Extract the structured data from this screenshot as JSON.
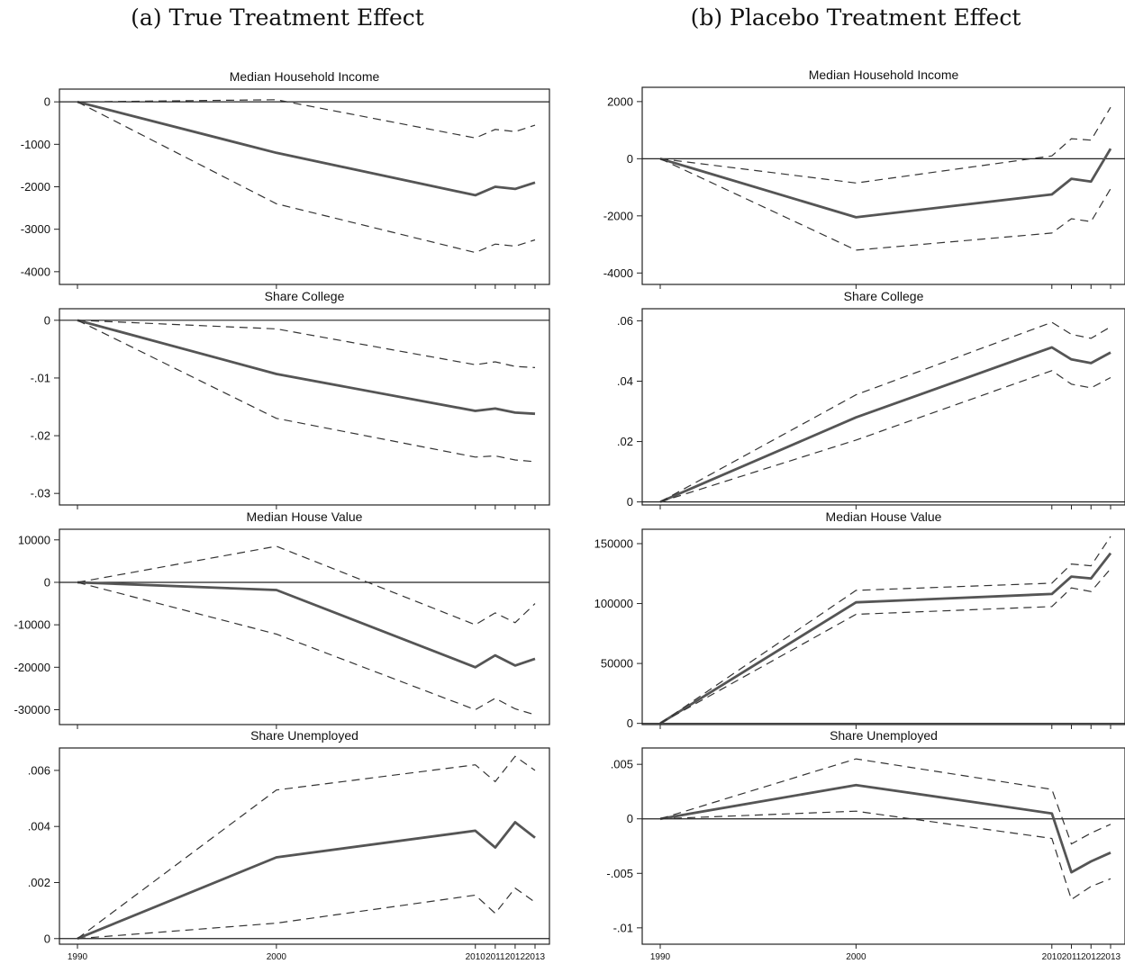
{
  "figure": {
    "columns": [
      {
        "title": "(a) True Treatment Effect"
      },
      {
        "title": "(b) Placebo Treatment Effect"
      }
    ]
  },
  "chart_data": [
    {
      "type": "line",
      "title": "Median Household Income",
      "x": [
        1990,
        2000,
        2010,
        2011,
        2012,
        2013
      ],
      "xticks": [
        "1990",
        "2000",
        "2010",
        "2011",
        "2012",
        "2013"
      ],
      "yticks": [
        0,
        -1000,
        -2000,
        -3000,
        -4000
      ],
      "ytick_labels": [
        "0",
        "-1000",
        "-2000",
        "-3000",
        "-4000"
      ],
      "ylim": [
        -4300,
        300
      ],
      "series": [
        {
          "values": [
            0,
            -1200,
            -2200,
            -2000,
            -2050,
            -1900
          ]
        },
        {
          "values": [
            0,
            50,
            -850,
            -650,
            -700,
            -550
          ]
        },
        {
          "values": [
            0,
            -2400,
            -3550,
            -3350,
            -3400,
            -3250
          ]
        }
      ]
    },
    {
      "type": "line",
      "title": "Median Household Income",
      "x": [
        1990,
        2000,
        2010,
        2011,
        2012,
        2013
      ],
      "xticks": [
        "1990",
        "2000",
        "2010",
        "2011",
        "2012",
        "2013"
      ],
      "yticks": [
        2000,
        0,
        -2000,
        -4000
      ],
      "ytick_labels": [
        "2000",
        "0",
        "-2000",
        "-4000"
      ],
      "ylim": [
        -4400,
        2500
      ],
      "series": [
        {
          "values": [
            0,
            -2050,
            -1250,
            -700,
            -800,
            350
          ]
        },
        {
          "values": [
            0,
            -850,
            100,
            700,
            650,
            1800
          ]
        },
        {
          "values": [
            0,
            -3200,
            -2600,
            -2100,
            -2200,
            -1050
          ]
        }
      ]
    },
    {
      "type": "line",
      "title": "Share College",
      "x": [
        1990,
        2000,
        2010,
        2011,
        2012,
        2013
      ],
      "xticks": [
        "1990",
        "2000",
        "2010",
        "2011",
        "2012",
        "2013"
      ],
      "yticks": [
        0,
        -0.01,
        -0.02,
        -0.03
      ],
      "ytick_labels": [
        "0",
        "-.01",
        "-.02",
        "-.03"
      ],
      "ylim": [
        -0.032,
        0.002
      ],
      "series": [
        {
          "values": [
            0,
            -0.0093,
            -0.0157,
            -0.0153,
            -0.016,
            -0.0162
          ]
        },
        {
          "values": [
            0,
            -0.0015,
            -0.0077,
            -0.0072,
            -0.008,
            -0.0082
          ]
        },
        {
          "values": [
            0,
            -0.017,
            -0.0237,
            -0.0235,
            -0.0242,
            -0.0245
          ]
        }
      ]
    },
    {
      "type": "line",
      "title": "Share College",
      "x": [
        1990,
        2000,
        2010,
        2011,
        2012,
        2013
      ],
      "xticks": [
        "1990",
        "2000",
        "2010",
        "2011",
        "2012",
        "2013"
      ],
      "yticks": [
        0.06,
        0.04,
        0.02,
        0
      ],
      "ytick_labels": [
        ".06",
        ".04",
        ".02",
        "0"
      ],
      "ylim": [
        -0.001,
        0.064
      ],
      "series": [
        {
          "values": [
            0,
            0.028,
            0.0512,
            0.0472,
            0.046,
            0.0495
          ]
        },
        {
          "values": [
            0,
            0.0355,
            0.0595,
            0.0555,
            0.0542,
            0.058
          ]
        },
        {
          "values": [
            0,
            0.0205,
            0.0435,
            0.039,
            0.0378,
            0.0412
          ]
        }
      ]
    },
    {
      "type": "line",
      "title": "Median House Value",
      "x": [
        1990,
        2000,
        2010,
        2011,
        2012,
        2013
      ],
      "xticks": [
        "1990",
        "2000",
        "2010",
        "2011",
        "2012",
        "2013"
      ],
      "yticks": [
        10000,
        0,
        -10000,
        -20000,
        -30000
      ],
      "ytick_labels": [
        "10000",
        "0",
        "-10000",
        "-20000",
        "-30000"
      ],
      "ylim": [
        -33500,
        12500
      ],
      "series": [
        {
          "values": [
            0,
            -1800,
            -20000,
            -17200,
            -19600,
            -18000
          ]
        },
        {
          "values": [
            0,
            8500,
            -10000,
            -7200,
            -9500,
            -5000
          ]
        },
        {
          "values": [
            0,
            -12200,
            -30000,
            -27300,
            -29800,
            -31200
          ]
        }
      ]
    },
    {
      "type": "line",
      "title": "Median House Value",
      "x": [
        1990,
        2000,
        2010,
        2011,
        2012,
        2013
      ],
      "xticks": [
        "1990",
        "2000",
        "2010",
        "2011",
        "2012",
        "2013"
      ],
      "yticks": [
        150000,
        100000,
        50000,
        0
      ],
      "ytick_labels": [
        "150000",
        "100000",
        "50000",
        "0"
      ],
      "ylim": [
        -1000,
        162000
      ],
      "series": [
        {
          "values": [
            0,
            101000,
            108000,
            122500,
            121000,
            142000
          ]
        },
        {
          "values": [
            0,
            111000,
            117000,
            133000,
            131500,
            156000
          ]
        },
        {
          "values": [
            0,
            91000,
            97500,
            113000,
            110000,
            129000
          ]
        }
      ]
    },
    {
      "type": "line",
      "title": "Share Unemployed",
      "x": [
        1990,
        2000,
        2010,
        2011,
        2012,
        2013
      ],
      "xticks": [
        "1990",
        "2000",
        "2010",
        "2011",
        "2012",
        "2013"
      ],
      "yticks": [
        0.006,
        0.004,
        0.002,
        0
      ],
      "ytick_labels": [
        ".006",
        ".004",
        ".002",
        "0"
      ],
      "ylim": [
        -0.0002,
        0.0068
      ],
      "series": [
        {
          "values": [
            0,
            0.0029,
            0.00385,
            0.00325,
            0.00415,
            0.0036
          ]
        },
        {
          "values": [
            0,
            0.0053,
            0.0062,
            0.0056,
            0.0065,
            0.006
          ]
        },
        {
          "values": [
            0,
            0.00055,
            0.00155,
            0.0009,
            0.0018,
            0.0013
          ]
        }
      ]
    },
    {
      "type": "line",
      "title": "Share Unemployed",
      "x": [
        1990,
        2000,
        2010,
        2011,
        2012,
        2013
      ],
      "xticks": [
        "1990",
        "2000",
        "2010",
        "2011",
        "2012",
        "2013"
      ],
      "yticks": [
        0.005,
        0,
        -0.005,
        -0.01
      ],
      "ytick_labels": [
        ".005",
        "0",
        "-.005",
        "-.01"
      ],
      "ylim": [
        -0.0115,
        0.0065
      ],
      "series": [
        {
          "values": [
            0,
            0.0031,
            0.0005,
            -0.0049,
            -0.0039,
            -0.0031
          ]
        },
        {
          "values": [
            0,
            0.0055,
            0.0027,
            -0.0023,
            -0.0013,
            -0.0005
          ]
        },
        {
          "values": [
            0,
            0.0007,
            -0.0018,
            -0.0074,
            -0.0062,
            -0.0055
          ]
        }
      ]
    }
  ]
}
